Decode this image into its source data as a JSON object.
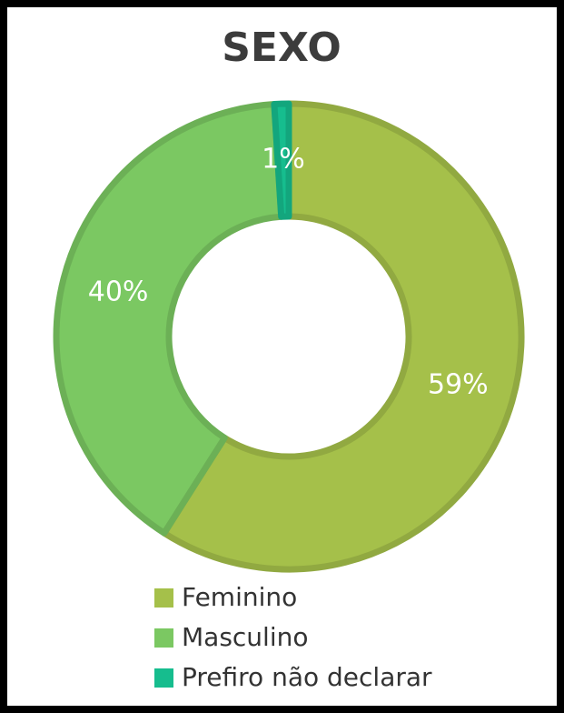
{
  "chart_data": {
    "type": "donut",
    "title": "SEXO",
    "categories": [
      "Feminino",
      "Masculino",
      "Prefiro não declarar"
    ],
    "values": [
      59,
      40,
      1
    ],
    "value_labels": [
      "59%",
      "40%",
      "1%"
    ],
    "colors": [
      "#a5c04a",
      "#7bc862",
      "#16bd8e"
    ],
    "legend": "bottom"
  }
}
